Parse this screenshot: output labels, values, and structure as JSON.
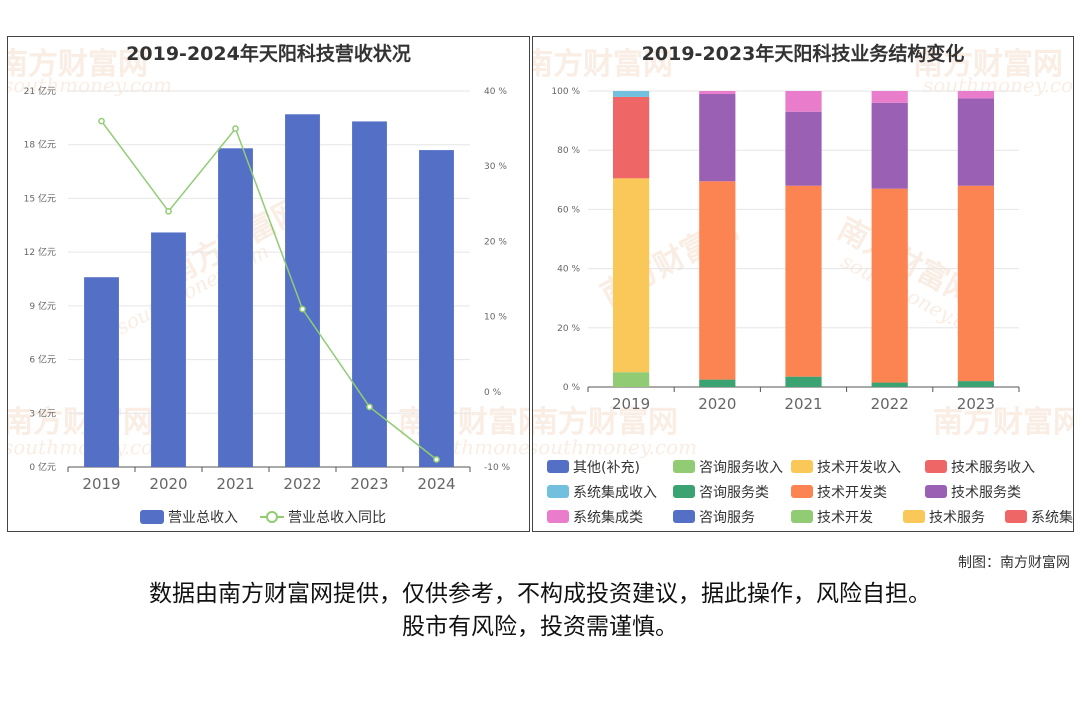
{
  "credit": "制图：南方财富网",
  "disclaimer": {
    "line1": "数据由南方财富网提供，仅供参考，不构成投资建议，据此操作，风险自担。",
    "line2": "股市有风险，投资需谨慎。"
  },
  "watermark": {
    "brand": "南方财富网",
    "site": "southmoney.com"
  },
  "colors": {
    "bar_blue": "#5470c6",
    "line_green": "#91cc75",
    "grid": "#e6e6e6",
    "axis_text": "#666666"
  },
  "chart_data": [
    {
      "type": "bar",
      "title": "2019-2024年天阳科技营收状况",
      "categories": [
        "2019",
        "2020",
        "2021",
        "2022",
        "2023",
        "2024"
      ],
      "series": [
        {
          "name": "营业总收入",
          "type": "bar",
          "axis": "left",
          "color": "#5470c6",
          "values": [
            10.6,
            13.1,
            17.8,
            19.7,
            19.3,
            17.7
          ]
        },
        {
          "name": "营业总收入同比",
          "type": "line",
          "axis": "right",
          "color": "#91cc75",
          "values": [
            36,
            24,
            35,
            11,
            -2,
            -9
          ]
        }
      ],
      "y_left": {
        "min": 0,
        "max": 21,
        "ticks": [
          0,
          3,
          6,
          9,
          12,
          15,
          18,
          21
        ],
        "tick_labels": [
          "0 亿元",
          "3 亿元",
          "6 亿元",
          "9 亿元",
          "12 亿元",
          "15 亿元",
          "18 亿元",
          "21 亿元"
        ]
      },
      "y_right": {
        "min": -10,
        "max": 40,
        "ticks": [
          -10,
          0,
          10,
          20,
          30,
          40
        ],
        "tick_labels": [
          "-10 %",
          "0 %",
          "10 %",
          "20 %",
          "30 %",
          "40 %"
        ]
      },
      "grid": true,
      "legend_position": "bottom"
    },
    {
      "type": "bar",
      "stacked": true,
      "title": "2019-2023年天阳科技业务结构变化",
      "categories": [
        "2019",
        "2020",
        "2021",
        "2022",
        "2023"
      ],
      "y": {
        "min": 0,
        "max": 100,
        "ticks": [
          0,
          20,
          40,
          60,
          80,
          100
        ],
        "tick_labels": [
          "0 %",
          "20 %",
          "40 %",
          "60 %",
          "80 %",
          "100 %"
        ]
      },
      "series": [
        {
          "name": "其他(补充)",
          "color": "#5470c6",
          "values": [
            0,
            0,
            0,
            0,
            0
          ]
        },
        {
          "name": "咨询服务收入",
          "color": "#91cc75",
          "values": [
            5,
            0,
            0,
            0,
            0
          ]
        },
        {
          "name": "技术开发收入",
          "color": "#fac858",
          "values": [
            65.5,
            0,
            0,
            0,
            0
          ]
        },
        {
          "name": "技术服务收入",
          "color": "#ee6666",
          "values": [
            27.5,
            0,
            0,
            0,
            0
          ]
        },
        {
          "name": "系统集成收入",
          "color": "#73c0de",
          "values": [
            2,
            0,
            0,
            0,
            0
          ]
        },
        {
          "name": "咨询服务类",
          "color": "#3ba272",
          "values": [
            0,
            2.5,
            3.5,
            1.5,
            2
          ]
        },
        {
          "name": "技术开发类",
          "color": "#fc8452",
          "values": [
            0,
            67,
            64.5,
            65.5,
            66
          ]
        },
        {
          "name": "技术服务类",
          "color": "#9a60b4",
          "values": [
            0,
            29.5,
            25,
            29,
            29.5
          ]
        },
        {
          "name": "系统集成类",
          "color": "#ea7ccc",
          "values": [
            0,
            1,
            7,
            4,
            2.5
          ]
        },
        {
          "name": "咨询服务",
          "color": "#5470c6",
          "values": [
            0,
            0,
            0,
            0,
            0
          ]
        },
        {
          "name": "技术开发",
          "color": "#91cc75",
          "values": [
            0,
            0,
            0,
            0,
            0
          ]
        },
        {
          "name": "技术服务",
          "color": "#fac858",
          "values": [
            0,
            0,
            0,
            0,
            0
          ]
        },
        {
          "name": "系统集成",
          "color": "#ee6666",
          "values": [
            0,
            0,
            0,
            0,
            0
          ]
        }
      ],
      "grid": true,
      "legend_position": "bottom"
    }
  ]
}
